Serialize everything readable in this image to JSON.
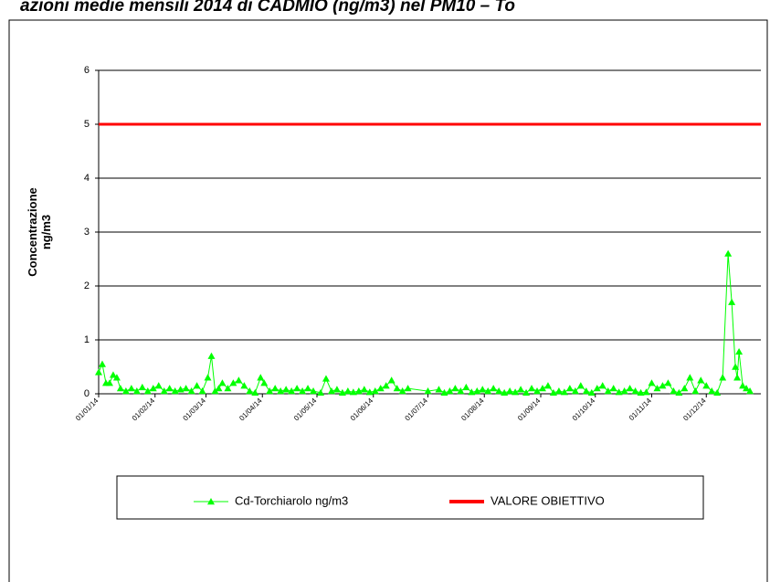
{
  "chart_data": {
    "type": "line",
    "title": "azioni medie mensili 2014 di CADMIO (ng/m3) nel PM10 – To",
    "ylabel": [
      "Concentrazione",
      "ng/m3"
    ],
    "xlim": [
      "2014-01-01",
      "2014-12-31"
    ],
    "xticks": [
      {
        "value": "2014-01-01",
        "label": "01/01/14"
      },
      {
        "value": "2014-02-01",
        "label": "01/02/14"
      },
      {
        "value": "2014-03-01",
        "label": "01/03/14"
      },
      {
        "value": "2014-04-01",
        "label": "01/04/14"
      },
      {
        "value": "2014-05-01",
        "label": "01/05/14"
      },
      {
        "value": "2014-06-01",
        "label": "01/06/14"
      },
      {
        "value": "2014-07-01",
        "label": "01/07/14"
      },
      {
        "value": "2014-08-01",
        "label": "01/08/14"
      },
      {
        "value": "2014-09-01",
        "label": "01/09/14"
      },
      {
        "value": "2014-10-01",
        "label": "01/10/14"
      },
      {
        "value": "2014-11-01",
        "label": "01/11/14"
      },
      {
        "value": "2014-12-01",
        "label": "01/12/14"
      }
    ],
    "ylim": [
      0,
      6
    ],
    "yticks": [
      0,
      1,
      2,
      3,
      4,
      5,
      6
    ],
    "grid": true,
    "series": [
      {
        "name": "Cd-Torchiarolo ng/m3",
        "color": "#00ff00",
        "marker": "triangle",
        "x": [
          "2014-01-01",
          "2014-01-03",
          "2014-01-05",
          "2014-01-07",
          "2014-01-09",
          "2014-01-11",
          "2014-01-13",
          "2014-01-16",
          "2014-01-19",
          "2014-01-22",
          "2014-01-25",
          "2014-01-28",
          "2014-01-31",
          "2014-02-03",
          "2014-02-06",
          "2014-02-09",
          "2014-02-12",
          "2014-02-15",
          "2014-02-18",
          "2014-02-21",
          "2014-02-24",
          "2014-02-27",
          "2014-03-02",
          "2014-03-04",
          "2014-03-06",
          "2014-03-08",
          "2014-03-10",
          "2014-03-13",
          "2014-03-16",
          "2014-03-19",
          "2014-03-22",
          "2014-03-25",
          "2014-03-28",
          "2014-03-31",
          "2014-04-02",
          "2014-04-05",
          "2014-04-08",
          "2014-04-11",
          "2014-04-14",
          "2014-04-17",
          "2014-04-20",
          "2014-04-23",
          "2014-04-26",
          "2014-04-29",
          "2014-05-03",
          "2014-05-06",
          "2014-05-09",
          "2014-05-12",
          "2014-05-15",
          "2014-05-18",
          "2014-05-21",
          "2014-05-24",
          "2014-05-27",
          "2014-05-30",
          "2014-06-02",
          "2014-06-05",
          "2014-06-08",
          "2014-06-11",
          "2014-06-14",
          "2014-06-17",
          "2014-06-20",
          "2014-07-01",
          "2014-07-07",
          "2014-07-10",
          "2014-07-13",
          "2014-07-16",
          "2014-07-19",
          "2014-07-22",
          "2014-07-25",
          "2014-07-28",
          "2014-07-31",
          "2014-08-03",
          "2014-08-06",
          "2014-08-09",
          "2014-08-12",
          "2014-08-15",
          "2014-08-18",
          "2014-08-21",
          "2014-08-24",
          "2014-08-27",
          "2014-08-30",
          "2014-09-02",
          "2014-09-05",
          "2014-09-08",
          "2014-09-11",
          "2014-09-14",
          "2014-09-17",
          "2014-09-20",
          "2014-09-23",
          "2014-09-26",
          "2014-09-29",
          "2014-10-02",
          "2014-10-05",
          "2014-10-08",
          "2014-10-11",
          "2014-10-14",
          "2014-10-17",
          "2014-10-20",
          "2014-10-23",
          "2014-10-26",
          "2014-10-29",
          "2014-11-01",
          "2014-11-04",
          "2014-11-07",
          "2014-11-10",
          "2014-11-13",
          "2014-11-16",
          "2014-11-19",
          "2014-11-22",
          "2014-11-25",
          "2014-11-28",
          "2014-12-01",
          "2014-12-04",
          "2014-12-07",
          "2014-12-10",
          "2014-12-13",
          "2014-12-15",
          "2014-12-17",
          "2014-12-18",
          "2014-12-19",
          "2014-12-21",
          "2014-12-23",
          "2014-12-25"
        ],
        "values": [
          0.4,
          0.55,
          0.2,
          0.2,
          0.35,
          0.3,
          0.1,
          0.05,
          0.1,
          0.05,
          0.12,
          0.05,
          0.1,
          0.15,
          0.05,
          0.1,
          0.05,
          0.08,
          0.1,
          0.05,
          0.15,
          0.05,
          0.3,
          0.7,
          0.05,
          0.1,
          0.2,
          0.1,
          0.2,
          0.25,
          0.15,
          0.05,
          0.02,
          0.3,
          0.2,
          0.05,
          0.1,
          0.05,
          0.08,
          0.05,
          0.1,
          0.05,
          0.1,
          0.05,
          0.02,
          0.28,
          0.05,
          0.08,
          0.02,
          0.05,
          0.03,
          0.05,
          0.08,
          0.03,
          0.05,
          0.1,
          0.15,
          0.25,
          0.1,
          0.05,
          0.1,
          0.05,
          0.08,
          0.02,
          0.05,
          0.1,
          0.05,
          0.12,
          0.03,
          0.05,
          0.08,
          0.05,
          0.1,
          0.05,
          0.02,
          0.05,
          0.03,
          0.08,
          0.02,
          0.1,
          0.05,
          0.1,
          0.15,
          0.02,
          0.05,
          0.03,
          0.1,
          0.05,
          0.15,
          0.05,
          0.02,
          0.1,
          0.15,
          0.05,
          0.1,
          0.03,
          0.05,
          0.1,
          0.05,
          0.02,
          0.03,
          0.2,
          0.1,
          0.15,
          0.2,
          0.05,
          0.02,
          0.1,
          0.3,
          0.05,
          0.25,
          0.15,
          0.05,
          0.02,
          0.3,
          2.6,
          1.7,
          0.5,
          0.3,
          0.78,
          0.15,
          0.1,
          0.05
        ]
      },
      {
        "name": "VALORE OBIETTIVO",
        "color": "#ff0000",
        "marker": "none",
        "x": [
          "2014-01-01",
          "2014-12-31"
        ],
        "values": [
          5,
          5
        ]
      }
    ]
  }
}
